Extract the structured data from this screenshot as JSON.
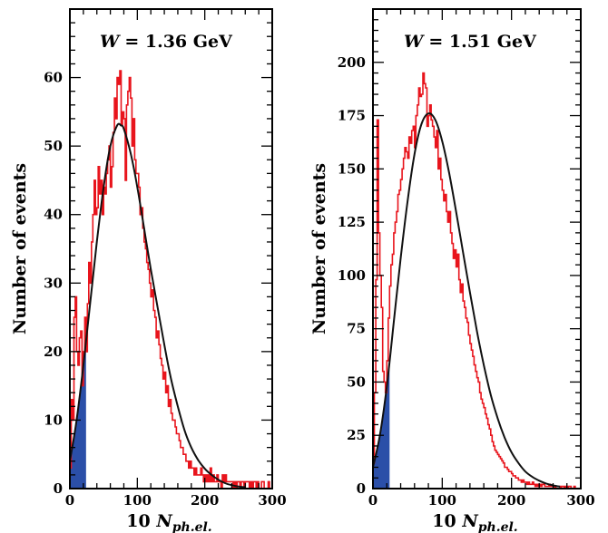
{
  "chart_data": [
    {
      "type": "histogram",
      "title": "W = 1.36 GeV",
      "title_prefix": "W",
      "title_suffix": "= 1.36 GeV",
      "xlabel": "10 N",
      "xlabel_sub": "ph.el.",
      "ylabel": "Number of events",
      "xlim": [
        0,
        300
      ],
      "ylim": [
        0,
        70
      ],
      "xticks": [
        0,
        100,
        200,
        300
      ],
      "yticks": [
        0,
        10,
        20,
        30,
        40,
        50,
        60
      ],
      "bin_width": 2,
      "bin_centers_start": 1,
      "counts": [
        3,
        13,
        10,
        25,
        28,
        20,
        18,
        22,
        23,
        15,
        20,
        25,
        20,
        27,
        33,
        30,
        36,
        40,
        45,
        40,
        41,
        47,
        43,
        45,
        40,
        44,
        43,
        46,
        48,
        50,
        44,
        47,
        52,
        57,
        54,
        60,
        59,
        61,
        53,
        55,
        54,
        45,
        56,
        58,
        60,
        57,
        50,
        54,
        48,
        46,
        46,
        44,
        40,
        41,
        38,
        36,
        35,
        33,
        32,
        30,
        28,
        29,
        26,
        25,
        22,
        23,
        21,
        19,
        18,
        16,
        17,
        14,
        15,
        12,
        13,
        11,
        10,
        10,
        9,
        8,
        8,
        7,
        6,
        6,
        5,
        5,
        4,
        4,
        3,
        4,
        3,
        3,
        2,
        3,
        2,
        2,
        2,
        3,
        2,
        1,
        2,
        1,
        2,
        1,
        3,
        1,
        2,
        1,
        1,
        2,
        1,
        1,
        0,
        2,
        1,
        2,
        1,
        1,
        1,
        1,
        1,
        0,
        1,
        0,
        1,
        1,
        0,
        1,
        1,
        0,
        1,
        1,
        1,
        0,
        1,
        0,
        1,
        1,
        0,
        1,
        0,
        0,
        1,
        1,
        0,
        0,
        0,
        1,
        0,
        0
      ],
      "fit_curve": {
        "description": "smooth fit",
        "x": [
          0,
          10,
          20,
          30,
          40,
          50,
          60,
          70,
          76,
          80,
          90,
          100,
          110,
          120,
          130,
          140,
          150,
          160,
          170,
          180,
          190,
          200,
          210,
          220,
          230,
          240,
          250,
          260
        ],
        "y": [
          4,
          10,
          18,
          27,
          36,
          44,
          50,
          53,
          53,
          52.5,
          49,
          44,
          38,
          32,
          26.5,
          21,
          16,
          12,
          8.5,
          6,
          4.2,
          2.9,
          2.0,
          1.3,
          0.8,
          0.5,
          0.3,
          0.2
        ]
      },
      "shaded_region": {
        "x_from": 0,
        "x_to": 24
      }
    },
    {
      "type": "histogram",
      "title": "W = 1.51 GeV",
      "title_prefix": "W",
      "title_suffix": "= 1.51 GeV",
      "xlabel": "10 N",
      "xlabel_sub": "ph.el.",
      "ylabel": "Number of events",
      "xlim": [
        0,
        300
      ],
      "ylim": [
        0,
        225
      ],
      "xticks": [
        0,
        100,
        200,
        300
      ],
      "yticks": [
        0,
        25,
        50,
        75,
        100,
        125,
        150,
        175,
        200
      ],
      "bin_width": 2,
      "bin_centers_start": 1,
      "counts": [
        12,
        45,
        98,
        173,
        120,
        100,
        85,
        55,
        50,
        45,
        60,
        80,
        95,
        105,
        110,
        120,
        125,
        130,
        138,
        140,
        145,
        150,
        155,
        160,
        158,
        155,
        165,
        162,
        168,
        170,
        160,
        175,
        180,
        188,
        184,
        185,
        195,
        190,
        188,
        170,
        175,
        180,
        173,
        170,
        165,
        160,
        168,
        150,
        155,
        145,
        140,
        135,
        138,
        130,
        125,
        130,
        120,
        115,
        108,
        112,
        104,
        110,
        98,
        92,
        96,
        88,
        85,
        80,
        78,
        72,
        68,
        65,
        62,
        58,
        55,
        52,
        50,
        45,
        42,
        40,
        38,
        35,
        33,
        30,
        28,
        25,
        22,
        20,
        18,
        17,
        16,
        15,
        14,
        13,
        12,
        10,
        10,
        9,
        8,
        8,
        7,
        6,
        6,
        5,
        5,
        4,
        4,
        3,
        4,
        3,
        3,
        2,
        3,
        2,
        2,
        3,
        2,
        1,
        2,
        1,
        2,
        1,
        2,
        2,
        1,
        1,
        1,
        2,
        1,
        1,
        1,
        0,
        1,
        1,
        1,
        0,
        1,
        1,
        0,
        1,
        0,
        1,
        1,
        0,
        0,
        1,
        0,
        0,
        0,
        0
      ],
      "fit_curve": {
        "description": "smooth fit",
        "x": [
          0,
          10,
          20,
          30,
          40,
          50,
          60,
          70,
          80,
          90,
          100,
          110,
          120,
          130,
          140,
          150,
          160,
          170,
          180,
          190,
          200,
          210,
          220,
          230,
          240,
          250,
          260,
          270
        ],
        "y": [
          10,
          25,
          48,
          78,
          108,
          135,
          157,
          171,
          176,
          173,
          163,
          148,
          130,
          111,
          92,
          74,
          58,
          44,
          33,
          24,
          17,
          12,
          8,
          5.5,
          3.7,
          2.4,
          1.5,
          0.9
        ]
      },
      "shaded_region": {
        "x_from": 0,
        "x_to": 24
      }
    }
  ]
}
